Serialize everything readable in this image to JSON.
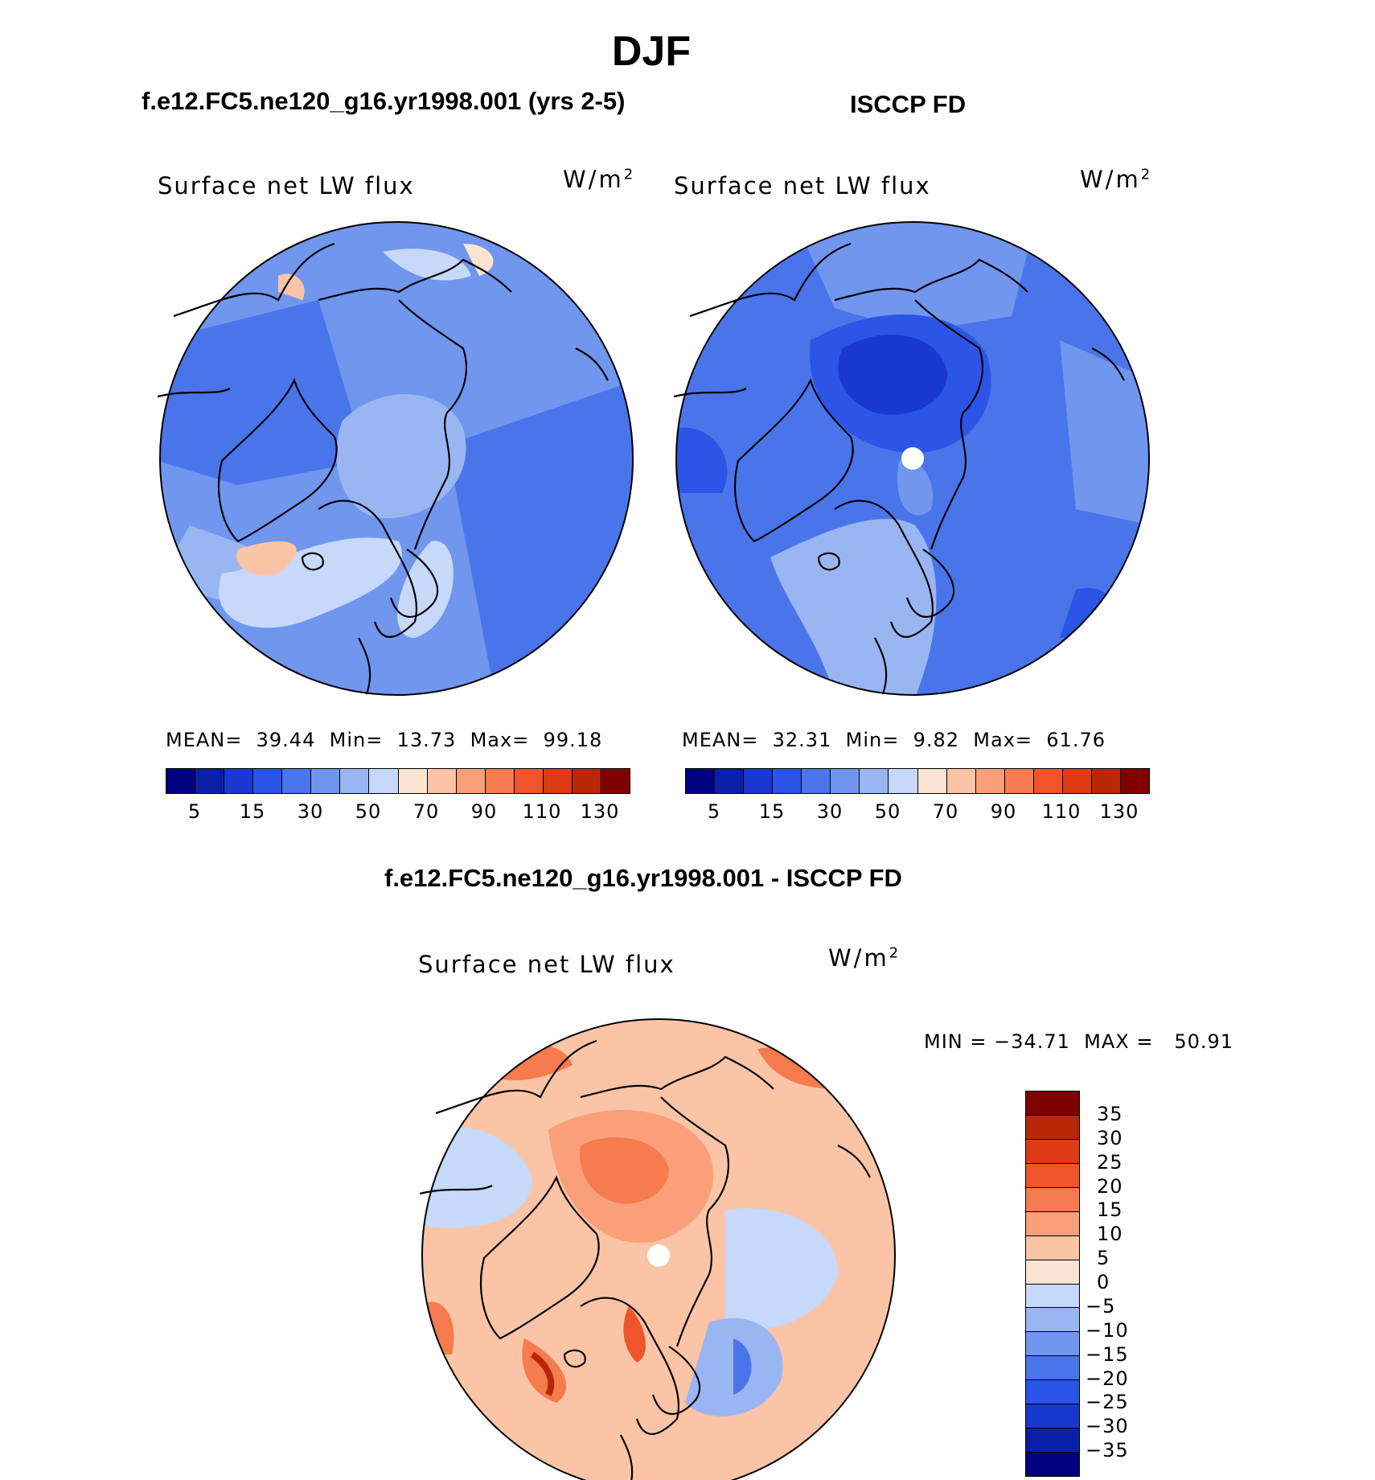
{
  "title": "DJF",
  "panels": {
    "model": {
      "case": "f.e12.FC5.ne120_g16.yr1998.001 (yrs 2-5)",
      "variable": "Surface net LW flux",
      "units_base": "W/m",
      "units_exp": "2",
      "stats": {
        "mean_label": "MEAN=",
        "mean": "39.44",
        "min_label": "Min=",
        "min": "13.73",
        "max_label": "Max=",
        "max": "99.18"
      }
    },
    "obs": {
      "case": "ISCCP FD",
      "variable": "Surface net LW flux",
      "units_base": "W/m",
      "units_exp": "2",
      "stats": {
        "mean_label": "MEAN=",
        "mean": "32.31",
        "min_label": "Min=",
        "min": "9.82",
        "max_label": "Max=",
        "max": "61.76"
      }
    },
    "diff": {
      "case": "f.e12.FC5.ne120_g16.yr1998.001 - ISCCP FD",
      "variable": "Surface net LW flux",
      "units_base": "W/m",
      "units_exp": "2",
      "minmax": "MIN = −34.71  MAX =   50.91"
    }
  },
  "colorbar_abs": {
    "tick_labels": [
      "5",
      "15",
      "30",
      "50",
      "70",
      "90",
      "110",
      "130"
    ],
    "colors": [
      "#000080",
      "#0a1fa8",
      "#1838d0",
      "#2a55e6",
      "#4a75ea",
      "#7096ee",
      "#9ab6f2",
      "#c6d9f8",
      "#fce4d2",
      "#fbc4a6",
      "#f9a07a",
      "#f67b4e",
      "#f0542a",
      "#de3a14",
      "#b82808",
      "#800000"
    ]
  },
  "colorbar_diff": {
    "tick_labels": [
      "35",
      "30",
      "25",
      "20",
      "15",
      "10",
      "5",
      "0",
      "−5",
      "−10",
      "−15",
      "−20",
      "−25",
      "−30",
      "−35"
    ],
    "colors": [
      "#800000",
      "#b82808",
      "#de3a14",
      "#f0542a",
      "#f67b4e",
      "#f9a07a",
      "#fbc4a6",
      "#fce4d2",
      "#c6d9f8",
      "#9ab6f2",
      "#7096ee",
      "#4a75ea",
      "#2a55e6",
      "#1838d0",
      "#0a1fa8",
      "#000080"
    ]
  },
  "map_colors": {
    "model_base": "#6e93ec",
    "obs_base": "#4a75ea",
    "diff_base": "#fbc4a6"
  }
}
